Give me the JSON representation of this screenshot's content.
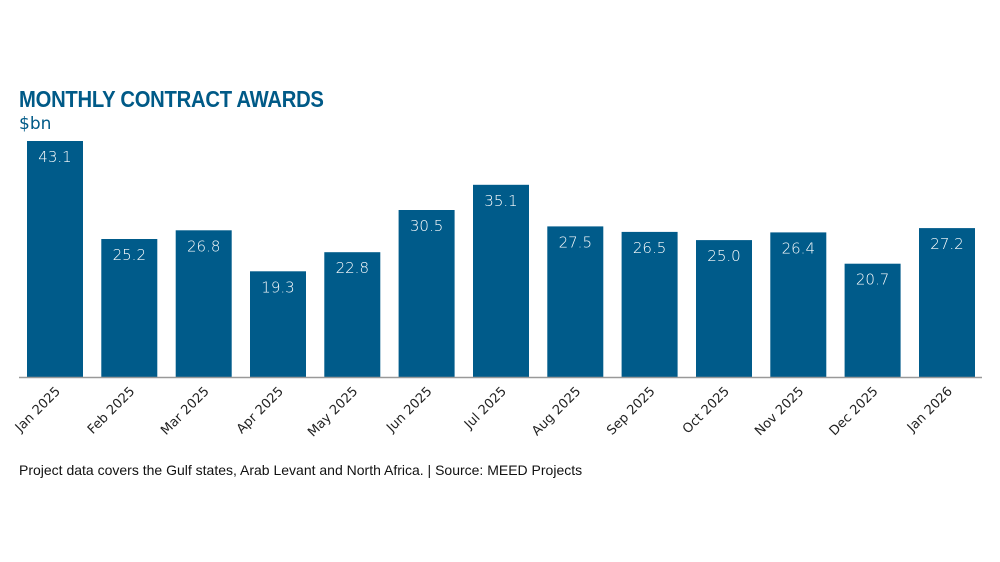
{
  "chart_data": {
    "type": "bar",
    "title": "MONTHLY CONTRACT AWARDS",
    "ylabel": "$bn",
    "xlabel": "",
    "categories": [
      "Jan 2025",
      "Feb 2025",
      "Mar 2025",
      "Apr 2025",
      "May 2025",
      "Jun 2025",
      "Jul 2025",
      "Aug 2025",
      "Sep 2025",
      "Oct 2025",
      "Nov 2025",
      "Dec 2025",
      "Jan 2026"
    ],
    "values": [
      43.1,
      25.2,
      26.8,
      19.3,
      22.8,
      30.5,
      35.1,
      27.5,
      26.5,
      25.0,
      26.4,
      20.7,
      27.2
    ],
    "labels": [
      "43.1",
      "25.2",
      "26.8",
      "19.3",
      "22.8",
      "30.5",
      "35.1",
      "27.5",
      "26.5",
      "25.0",
      "26.4",
      "20.7",
      "27.2"
    ],
    "ylim": [
      0,
      43.1
    ],
    "grid": false,
    "legend": "none",
    "bar_color": "#005b8a",
    "label_color": "#ffffff"
  },
  "header": {
    "title": "MONTHLY CONTRACT AWARDS",
    "unit": "$bn"
  },
  "footnote": "Project data covers the Gulf states, Arab Levant and North Africa. | Source: MEED Projects"
}
